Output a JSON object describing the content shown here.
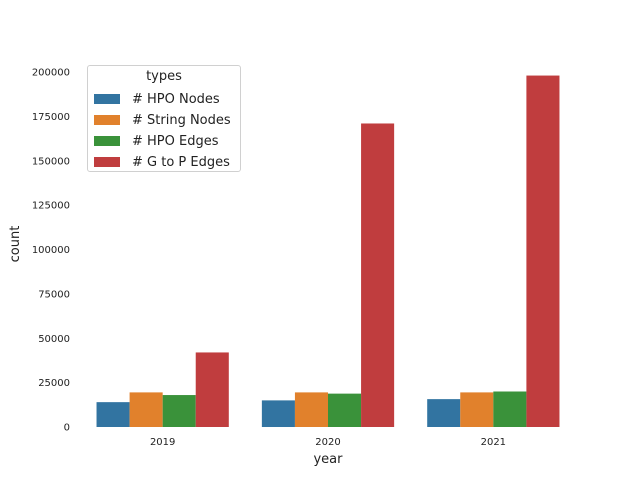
{
  "chart_data": {
    "type": "bar",
    "xlabel": "year",
    "ylabel": "count",
    "categories": [
      "2019",
      "2020",
      "2021"
    ],
    "ylim": [
      0,
      200000
    ],
    "yticks": [
      0,
      25000,
      50000,
      75000,
      100000,
      125000,
      150000,
      175000,
      200000
    ],
    "grid": false,
    "legend": {
      "title": "types",
      "placement": "top-left"
    },
    "series": [
      {
        "name": "# HPO Nodes",
        "color": "#3274a1",
        "values": [
          14000,
          15000,
          15700
        ]
      },
      {
        "name": "# String Nodes",
        "color": "#e1812c",
        "values": [
          19500,
          19500,
          19500
        ]
      },
      {
        "name": "# HPO Edges",
        "color": "#3a923a",
        "values": [
          18000,
          18800,
          20000
        ]
      },
      {
        "name": "# G to P Edges",
        "color": "#c03d3e",
        "values": [
          42000,
          171000,
          198000
        ]
      }
    ]
  }
}
